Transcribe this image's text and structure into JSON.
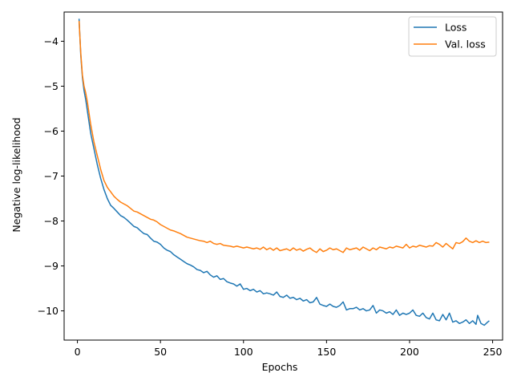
{
  "chart_data": {
    "type": "line",
    "xlabel": "Epochs",
    "ylabel": "Negative log-likelihood",
    "xlim": [
      -8,
      256
    ],
    "ylim": [
      -10.65,
      -3.35
    ],
    "xticks": [
      0,
      50,
      100,
      150,
      200,
      250
    ],
    "yticks": [
      -4,
      -5,
      -6,
      -7,
      -8,
      -9,
      -10
    ],
    "xtick_labels": [
      "0",
      "50",
      "100",
      "150",
      "200",
      "250"
    ],
    "ytick_labels": [
      "−4",
      "−5",
      "−6",
      "−7",
      "−8",
      "−9",
      "−10"
    ],
    "legend_position": "top-right",
    "grid": false,
    "series": [
      {
        "name": "Loss",
        "color": "#1f77b4",
        "points": [
          [
            1,
            -3.5
          ],
          [
            2,
            -4.3
          ],
          [
            3,
            -4.8
          ],
          [
            4,
            -5.1
          ],
          [
            5,
            -5.3
          ],
          [
            6,
            -5.55
          ],
          [
            7,
            -5.8
          ],
          [
            8,
            -6.05
          ],
          [
            10,
            -6.4
          ],
          [
            12,
            -6.75
          ],
          [
            14,
            -7.05
          ],
          [
            16,
            -7.3
          ],
          [
            18,
            -7.5
          ],
          [
            20,
            -7.65
          ],
          [
            22,
            -7.72
          ],
          [
            24,
            -7.8
          ],
          [
            26,
            -7.88
          ],
          [
            28,
            -7.92
          ],
          [
            30,
            -7.98
          ],
          [
            32,
            -8.05
          ],
          [
            34,
            -8.12
          ],
          [
            36,
            -8.15
          ],
          [
            38,
            -8.22
          ],
          [
            40,
            -8.28
          ],
          [
            42,
            -8.3
          ],
          [
            44,
            -8.38
          ],
          [
            46,
            -8.45
          ],
          [
            48,
            -8.47
          ],
          [
            50,
            -8.52
          ],
          [
            52,
            -8.6
          ],
          [
            54,
            -8.65
          ],
          [
            56,
            -8.68
          ],
          [
            58,
            -8.75
          ],
          [
            60,
            -8.8
          ],
          [
            62,
            -8.85
          ],
          [
            64,
            -8.9
          ],
          [
            66,
            -8.95
          ],
          [
            68,
            -8.98
          ],
          [
            70,
            -9.02
          ],
          [
            72,
            -9.08
          ],
          [
            74,
            -9.1
          ],
          [
            76,
            -9.15
          ],
          [
            78,
            -9.12
          ],
          [
            80,
            -9.2
          ],
          [
            82,
            -9.25
          ],
          [
            84,
            -9.22
          ],
          [
            86,
            -9.3
          ],
          [
            88,
            -9.28
          ],
          [
            90,
            -9.35
          ],
          [
            92,
            -9.38
          ],
          [
            94,
            -9.4
          ],
          [
            96,
            -9.45
          ],
          [
            98,
            -9.4
          ],
          [
            100,
            -9.52
          ],
          [
            102,
            -9.5
          ],
          [
            104,
            -9.55
          ],
          [
            106,
            -9.52
          ],
          [
            108,
            -9.58
          ],
          [
            110,
            -9.55
          ],
          [
            112,
            -9.62
          ],
          [
            114,
            -9.6
          ],
          [
            116,
            -9.62
          ],
          [
            118,
            -9.65
          ],
          [
            120,
            -9.58
          ],
          [
            122,
            -9.68
          ],
          [
            124,
            -9.7
          ],
          [
            126,
            -9.65
          ],
          [
            128,
            -9.72
          ],
          [
            130,
            -9.7
          ],
          [
            132,
            -9.75
          ],
          [
            134,
            -9.72
          ],
          [
            136,
            -9.78
          ],
          [
            138,
            -9.75
          ],
          [
            140,
            -9.82
          ],
          [
            142,
            -9.8
          ],
          [
            144,
            -9.7
          ],
          [
            146,
            -9.85
          ],
          [
            148,
            -9.88
          ],
          [
            150,
            -9.9
          ],
          [
            152,
            -9.85
          ],
          [
            154,
            -9.9
          ],
          [
            156,
            -9.92
          ],
          [
            158,
            -9.88
          ],
          [
            160,
            -9.8
          ],
          [
            162,
            -9.98
          ],
          [
            164,
            -9.95
          ],
          [
            166,
            -9.95
          ],
          [
            168,
            -9.92
          ],
          [
            170,
            -9.98
          ],
          [
            172,
            -9.95
          ],
          [
            174,
            -10.0
          ],
          [
            176,
            -9.98
          ],
          [
            178,
            -9.88
          ],
          [
            180,
            -10.05
          ],
          [
            182,
            -9.98
          ],
          [
            184,
            -10.0
          ],
          [
            186,
            -10.05
          ],
          [
            188,
            -10.02
          ],
          [
            190,
            -10.08
          ],
          [
            192,
            -9.98
          ],
          [
            194,
            -10.1
          ],
          [
            196,
            -10.05
          ],
          [
            198,
            -10.08
          ],
          [
            200,
            -10.05
          ],
          [
            202,
            -9.98
          ],
          [
            204,
            -10.1
          ],
          [
            206,
            -10.12
          ],
          [
            208,
            -10.05
          ],
          [
            210,
            -10.15
          ],
          [
            212,
            -10.18
          ],
          [
            214,
            -10.05
          ],
          [
            216,
            -10.2
          ],
          [
            218,
            -10.22
          ],
          [
            220,
            -10.08
          ],
          [
            222,
            -10.2
          ],
          [
            224,
            -10.05
          ],
          [
            226,
            -10.25
          ],
          [
            228,
            -10.22
          ],
          [
            230,
            -10.28
          ],
          [
            232,
            -10.25
          ],
          [
            234,
            -10.2
          ],
          [
            236,
            -10.28
          ],
          [
            238,
            -10.22
          ],
          [
            240,
            -10.3
          ],
          [
            241,
            -10.1
          ],
          [
            243,
            -10.28
          ],
          [
            245,
            -10.32
          ],
          [
            247,
            -10.25
          ],
          [
            248,
            -10.22
          ]
        ]
      },
      {
        "name": "Val. loss",
        "color": "#ff7f0e",
        "points": [
          [
            1,
            -3.55
          ],
          [
            2,
            -4.25
          ],
          [
            3,
            -4.75
          ],
          [
            4,
            -5.0
          ],
          [
            5,
            -5.15
          ],
          [
            6,
            -5.35
          ],
          [
            7,
            -5.6
          ],
          [
            8,
            -5.85
          ],
          [
            10,
            -6.25
          ],
          [
            12,
            -6.55
          ],
          [
            14,
            -6.85
          ],
          [
            16,
            -7.1
          ],
          [
            18,
            -7.25
          ],
          [
            20,
            -7.35
          ],
          [
            22,
            -7.45
          ],
          [
            24,
            -7.52
          ],
          [
            26,
            -7.58
          ],
          [
            28,
            -7.62
          ],
          [
            30,
            -7.66
          ],
          [
            32,
            -7.72
          ],
          [
            34,
            -7.78
          ],
          [
            36,
            -7.8
          ],
          [
            38,
            -7.84
          ],
          [
            40,
            -7.88
          ],
          [
            42,
            -7.92
          ],
          [
            44,
            -7.96
          ],
          [
            46,
            -7.98
          ],
          [
            48,
            -8.02
          ],
          [
            50,
            -8.08
          ],
          [
            52,
            -8.12
          ],
          [
            54,
            -8.16
          ],
          [
            56,
            -8.2
          ],
          [
            58,
            -8.22
          ],
          [
            60,
            -8.25
          ],
          [
            62,
            -8.28
          ],
          [
            64,
            -8.32
          ],
          [
            66,
            -8.36
          ],
          [
            68,
            -8.38
          ],
          [
            70,
            -8.4
          ],
          [
            72,
            -8.42
          ],
          [
            74,
            -8.44
          ],
          [
            76,
            -8.45
          ],
          [
            78,
            -8.48
          ],
          [
            80,
            -8.45
          ],
          [
            82,
            -8.5
          ],
          [
            84,
            -8.52
          ],
          [
            86,
            -8.5
          ],
          [
            88,
            -8.54
          ],
          [
            90,
            -8.55
          ],
          [
            92,
            -8.56
          ],
          [
            94,
            -8.58
          ],
          [
            96,
            -8.56
          ],
          [
            98,
            -8.58
          ],
          [
            100,
            -8.6
          ],
          [
            102,
            -8.58
          ],
          [
            104,
            -8.6
          ],
          [
            106,
            -8.62
          ],
          [
            108,
            -8.6
          ],
          [
            110,
            -8.63
          ],
          [
            112,
            -8.58
          ],
          [
            114,
            -8.64
          ],
          [
            116,
            -8.6
          ],
          [
            118,
            -8.65
          ],
          [
            120,
            -8.6
          ],
          [
            122,
            -8.66
          ],
          [
            124,
            -8.64
          ],
          [
            126,
            -8.62
          ],
          [
            128,
            -8.66
          ],
          [
            130,
            -8.6
          ],
          [
            132,
            -8.65
          ],
          [
            134,
            -8.62
          ],
          [
            136,
            -8.67
          ],
          [
            138,
            -8.63
          ],
          [
            140,
            -8.6
          ],
          [
            142,
            -8.66
          ],
          [
            144,
            -8.7
          ],
          [
            146,
            -8.62
          ],
          [
            148,
            -8.68
          ],
          [
            150,
            -8.65
          ],
          [
            152,
            -8.6
          ],
          [
            154,
            -8.64
          ],
          [
            156,
            -8.62
          ],
          [
            158,
            -8.66
          ],
          [
            160,
            -8.7
          ],
          [
            162,
            -8.6
          ],
          [
            164,
            -8.64
          ],
          [
            166,
            -8.62
          ],
          [
            168,
            -8.6
          ],
          [
            170,
            -8.65
          ],
          [
            172,
            -8.58
          ],
          [
            174,
            -8.62
          ],
          [
            176,
            -8.66
          ],
          [
            178,
            -8.6
          ],
          [
            180,
            -8.64
          ],
          [
            182,
            -8.58
          ],
          [
            184,
            -8.6
          ],
          [
            186,
            -8.62
          ],
          [
            188,
            -8.58
          ],
          [
            190,
            -8.6
          ],
          [
            192,
            -8.56
          ],
          [
            194,
            -8.58
          ],
          [
            196,
            -8.6
          ],
          [
            198,
            -8.52
          ],
          [
            200,
            -8.6
          ],
          [
            202,
            -8.56
          ],
          [
            204,
            -8.58
          ],
          [
            206,
            -8.54
          ],
          [
            208,
            -8.56
          ],
          [
            210,
            -8.58
          ],
          [
            212,
            -8.55
          ],
          [
            214,
            -8.56
          ],
          [
            216,
            -8.48
          ],
          [
            218,
            -8.52
          ],
          [
            220,
            -8.58
          ],
          [
            222,
            -8.5
          ],
          [
            224,
            -8.56
          ],
          [
            226,
            -8.62
          ],
          [
            228,
            -8.48
          ],
          [
            230,
            -8.5
          ],
          [
            232,
            -8.46
          ],
          [
            234,
            -8.38
          ],
          [
            236,
            -8.45
          ],
          [
            238,
            -8.48
          ],
          [
            240,
            -8.44
          ],
          [
            242,
            -8.48
          ],
          [
            244,
            -8.45
          ],
          [
            246,
            -8.48
          ],
          [
            248,
            -8.47
          ]
        ]
      }
    ]
  }
}
